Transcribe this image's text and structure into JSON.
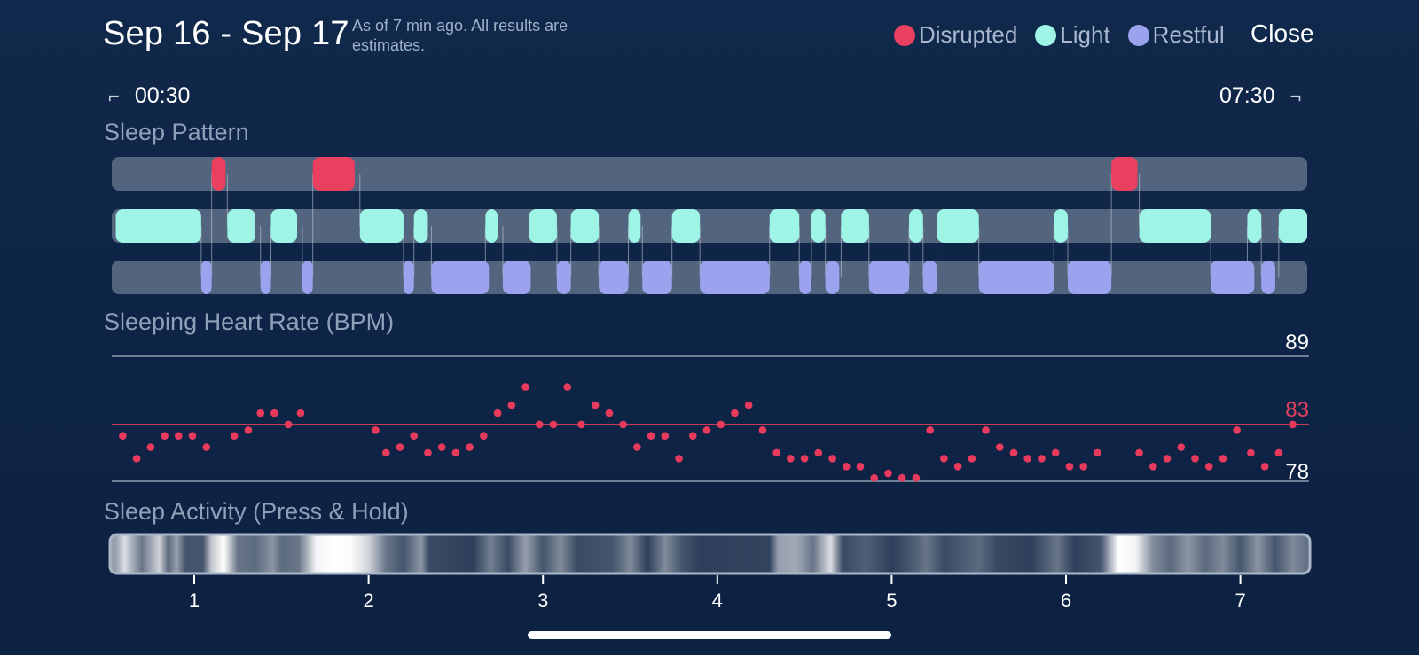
{
  "header": {
    "date_range": "Sep 16 - Sep 17",
    "note": "As of 7 min ago. All results are estimates.",
    "close_label": "Close"
  },
  "legend": [
    {
      "label": "Disrupted",
      "color": "#e9405f"
    },
    {
      "label": "Light",
      "color": "#9ef5e6"
    },
    {
      "label": "Restful",
      "color": "#9ba3ef"
    }
  ],
  "time_range": {
    "start": "00:30",
    "end": "07:30"
  },
  "sections": {
    "sleep_pattern": "Sleep Pattern",
    "heart_rate": "Sleeping Heart Rate (BPM)",
    "activity": "Sleep Activity (Press & Hold)"
  },
  "sleep_pattern": {
    "start_hour": 0.55,
    "end_hour": 7.4,
    "disrupted": [
      [
        1.1,
        1.18
      ],
      [
        1.68,
        1.92
      ],
      [
        6.26,
        6.41
      ]
    ],
    "light": [
      [
        0.55,
        1.04
      ],
      [
        1.19,
        1.35
      ],
      [
        1.44,
        1.59
      ],
      [
        1.95,
        2.2
      ],
      [
        2.26,
        2.34
      ],
      [
        2.67,
        2.74
      ],
      [
        2.92,
        3.08
      ],
      [
        3.16,
        3.32
      ],
      [
        3.49,
        3.56
      ],
      [
        3.74,
        3.9
      ],
      [
        4.3,
        4.47
      ],
      [
        4.54,
        4.62
      ],
      [
        4.71,
        4.87
      ],
      [
        5.1,
        5.18
      ],
      [
        5.26,
        5.5
      ],
      [
        5.93,
        6.01
      ],
      [
        6.42,
        6.83
      ],
      [
        7.04,
        7.12
      ],
      [
        7.22,
        7.4
      ]
    ],
    "restful": [
      [
        1.04,
        1.1
      ],
      [
        1.38,
        1.44
      ],
      [
        1.62,
        1.68
      ],
      [
        2.2,
        2.26
      ],
      [
        2.36,
        2.69
      ],
      [
        2.77,
        2.93
      ],
      [
        3.08,
        3.16
      ],
      [
        3.32,
        3.49
      ],
      [
        3.57,
        3.74
      ],
      [
        3.9,
        4.3
      ],
      [
        4.47,
        4.54
      ],
      [
        4.62,
        4.7
      ],
      [
        4.87,
        5.1
      ],
      [
        5.18,
        5.26
      ],
      [
        5.5,
        5.93
      ],
      [
        6.01,
        6.26
      ],
      [
        6.83,
        7.08
      ],
      [
        7.12,
        7.2
      ]
    ]
  },
  "heart_rate": {
    "max_label": "89",
    "avg_label": "83",
    "min_label": "78",
    "max": 89,
    "avg": 83,
    "min": 78,
    "points": [
      [
        0.59,
        82
      ],
      [
        0.67,
        80
      ],
      [
        0.75,
        81
      ],
      [
        0.83,
        82
      ],
      [
        0.91,
        82
      ],
      [
        0.99,
        82
      ],
      [
        1.07,
        81
      ],
      [
        1.23,
        82
      ],
      [
        1.31,
        82.5
      ],
      [
        1.38,
        84
      ],
      [
        1.46,
        84
      ],
      [
        1.54,
        83
      ],
      [
        1.61,
        84
      ],
      [
        2.04,
        82.5
      ],
      [
        2.1,
        80.5
      ],
      [
        2.18,
        81
      ],
      [
        2.26,
        82
      ],
      [
        2.34,
        80.5
      ],
      [
        2.42,
        81
      ],
      [
        2.5,
        80.5
      ],
      [
        2.58,
        81
      ],
      [
        2.66,
        82
      ],
      [
        2.74,
        84
      ],
      [
        2.82,
        84.7
      ],
      [
        2.9,
        86.3
      ],
      [
        2.98,
        83
      ],
      [
        3.06,
        83
      ],
      [
        3.14,
        86.3
      ],
      [
        3.22,
        83
      ],
      [
        3.3,
        84.7
      ],
      [
        3.38,
        84
      ],
      [
        3.46,
        83
      ],
      [
        3.54,
        81
      ],
      [
        3.62,
        82
      ],
      [
        3.7,
        82
      ],
      [
        3.78,
        80
      ],
      [
        3.86,
        82
      ],
      [
        3.94,
        82.5
      ],
      [
        4.02,
        83
      ],
      [
        4.1,
        84
      ],
      [
        4.18,
        84.7
      ],
      [
        4.26,
        82.5
      ],
      [
        4.34,
        80.5
      ],
      [
        4.42,
        80
      ],
      [
        4.5,
        80
      ],
      [
        4.58,
        80.5
      ],
      [
        4.66,
        80
      ],
      [
        4.74,
        79.3
      ],
      [
        4.82,
        79.3
      ],
      [
        4.9,
        78.3
      ],
      [
        4.98,
        78.7
      ],
      [
        5.06,
        78.3
      ],
      [
        5.14,
        78.3
      ],
      [
        5.22,
        82.5
      ],
      [
        5.3,
        80
      ],
      [
        5.38,
        79.3
      ],
      [
        5.46,
        80
      ],
      [
        5.54,
        82.5
      ],
      [
        5.62,
        81
      ],
      [
        5.7,
        80.5
      ],
      [
        5.78,
        80
      ],
      [
        5.86,
        80
      ],
      [
        5.94,
        80.5
      ],
      [
        6.02,
        79.3
      ],
      [
        6.1,
        79.3
      ],
      [
        6.18,
        80.5
      ],
      [
        6.42,
        80.5
      ],
      [
        6.5,
        79.3
      ],
      [
        6.58,
        80
      ],
      [
        6.66,
        81
      ],
      [
        6.74,
        80
      ],
      [
        6.82,
        79.3
      ],
      [
        6.9,
        80
      ],
      [
        6.98,
        82.5
      ],
      [
        7.06,
        80.5
      ],
      [
        7.14,
        79.3
      ],
      [
        7.22,
        80.5
      ],
      [
        7.3,
        83
      ]
    ]
  },
  "activity": {
    "axis_ticks": [
      "1",
      "2",
      "3",
      "4",
      "5",
      "6",
      "7"
    ],
    "intensity": [
      [
        0.55,
        0.55
      ],
      [
        0.6,
        0.85
      ],
      [
        0.7,
        0.35
      ],
      [
        0.8,
        0.8
      ],
      [
        0.85,
        0.3
      ],
      [
        0.9,
        0.55
      ],
      [
        0.95,
        0.2
      ],
      [
        1.05,
        0.2
      ],
      [
        1.1,
        0.75
      ],
      [
        1.17,
        1.0
      ],
      [
        1.25,
        0.35
      ],
      [
        1.35,
        0.3
      ],
      [
        1.45,
        0.5
      ],
      [
        1.5,
        0.3
      ],
      [
        1.6,
        0.35
      ],
      [
        1.7,
        0.95
      ],
      [
        1.8,
        1.0
      ],
      [
        1.9,
        0.98
      ],
      [
        2.0,
        0.8
      ],
      [
        2.1,
        0.35
      ],
      [
        2.2,
        0.2
      ],
      [
        2.3,
        0.5
      ],
      [
        2.35,
        0.15
      ],
      [
        2.6,
        0.1
      ],
      [
        2.7,
        0.4
      ],
      [
        2.8,
        0.15
      ],
      [
        2.9,
        0.55
      ],
      [
        3.0,
        0.2
      ],
      [
        3.1,
        0.45
      ],
      [
        3.2,
        0.15
      ],
      [
        3.4,
        0.2
      ],
      [
        3.5,
        0.45
      ],
      [
        3.6,
        0.1
      ],
      [
        3.7,
        0.45
      ],
      [
        3.8,
        0.2
      ],
      [
        3.9,
        0.1
      ],
      [
        4.3,
        0.12
      ],
      [
        4.35,
        0.55
      ],
      [
        4.45,
        0.6
      ],
      [
        4.55,
        0.35
      ],
      [
        4.65,
        0.85
      ],
      [
        4.72,
        0.15
      ],
      [
        4.85,
        0.25
      ],
      [
        5.0,
        0.1
      ],
      [
        5.1,
        0.2
      ],
      [
        5.2,
        0.35
      ],
      [
        5.3,
        0.15
      ],
      [
        5.5,
        0.3
      ],
      [
        5.6,
        0.15
      ],
      [
        5.8,
        0.1
      ],
      [
        5.95,
        0.35
      ],
      [
        6.05,
        0.1
      ],
      [
        6.2,
        0.2
      ],
      [
        6.3,
        1.0
      ],
      [
        6.4,
        0.95
      ],
      [
        6.5,
        0.45
      ],
      [
        6.6,
        0.3
      ],
      [
        6.7,
        0.5
      ],
      [
        6.8,
        0.3
      ],
      [
        6.9,
        0.45
      ],
      [
        7.0,
        0.2
      ],
      [
        7.1,
        0.5
      ],
      [
        7.2,
        0.2
      ],
      [
        7.3,
        0.45
      ],
      [
        7.4,
        0.3
      ]
    ]
  },
  "colors": {
    "track": "#53657e",
    "disrupted": "#e9405f",
    "light": "#9ef5e6",
    "restful": "#9ba3ef",
    "hr_dot": "#e83a5c",
    "hr_line": "#e0405e",
    "grid": "#8c9bb1"
  }
}
